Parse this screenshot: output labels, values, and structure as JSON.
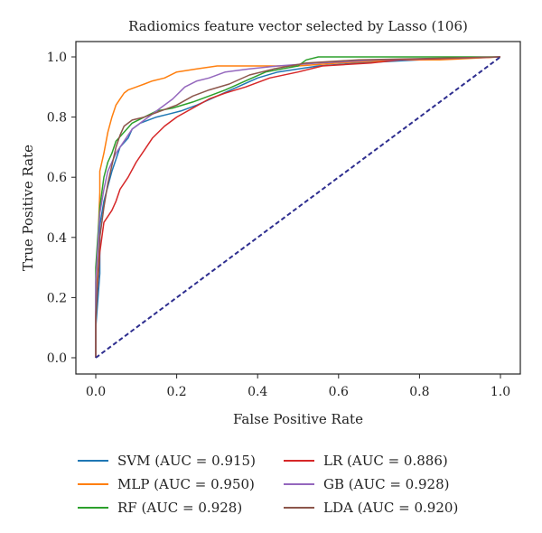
{
  "chart_data": {
    "type": "line",
    "title": "Radiomics feature vector selected by Lasso (106)",
    "xlabel": "False Positive Rate",
    "ylabel": "True Positive Rate",
    "xlim": [
      0.0,
      1.0
    ],
    "ylim": [
      0.0,
      1.0
    ],
    "x_ticks": [
      "0.0",
      "0.2",
      "0.4",
      "0.6",
      "0.8",
      "1.0"
    ],
    "y_ticks": [
      "0.0",
      "0.2",
      "0.4",
      "0.6",
      "0.8",
      "1.0"
    ],
    "grid": false,
    "legend_position": "below",
    "chance_line": {
      "style": "dashed",
      "color": "#2e2e8f",
      "points": [
        [
          0.0,
          0.0
        ],
        [
          1.0,
          1.0
        ]
      ]
    },
    "series": [
      {
        "name": "SVM (AUC = 0.915)",
        "color": "#1f77b4",
        "points": [
          [
            0,
            0
          ],
          [
            0,
            0.1
          ],
          [
            0.01,
            0.28
          ],
          [
            0.01,
            0.44
          ],
          [
            0.02,
            0.52
          ],
          [
            0.03,
            0.57
          ],
          [
            0.04,
            0.62
          ],
          [
            0.05,
            0.66
          ],
          [
            0.06,
            0.7
          ],
          [
            0.08,
            0.73
          ],
          [
            0.09,
            0.76
          ],
          [
            0.11,
            0.78
          ],
          [
            0.13,
            0.79
          ],
          [
            0.15,
            0.8
          ],
          [
            0.18,
            0.81
          ],
          [
            0.21,
            0.82
          ],
          [
            0.25,
            0.84
          ],
          [
            0.3,
            0.87
          ],
          [
            0.35,
            0.9
          ],
          [
            0.4,
            0.93
          ],
          [
            0.45,
            0.95
          ],
          [
            0.55,
            0.97
          ],
          [
            0.65,
            0.98
          ],
          [
            0.8,
            0.99
          ],
          [
            1,
            1
          ]
        ]
      },
      {
        "name": "MLP (AUC = 0.950)",
        "color": "#ff7f0e",
        "points": [
          [
            0,
            0
          ],
          [
            0,
            0.2
          ],
          [
            0.01,
            0.55
          ],
          [
            0.01,
            0.62
          ],
          [
            0.02,
            0.68
          ],
          [
            0.03,
            0.75
          ],
          [
            0.04,
            0.8
          ],
          [
            0.05,
            0.84
          ],
          [
            0.06,
            0.86
          ],
          [
            0.07,
            0.88
          ],
          [
            0.08,
            0.89
          ],
          [
            0.1,
            0.9
          ],
          [
            0.12,
            0.91
          ],
          [
            0.14,
            0.92
          ],
          [
            0.17,
            0.93
          ],
          [
            0.2,
            0.95
          ],
          [
            0.25,
            0.96
          ],
          [
            0.3,
            0.97
          ],
          [
            0.4,
            0.97
          ],
          [
            0.5,
            0.97
          ],
          [
            0.6,
            0.98
          ],
          [
            0.75,
            0.99
          ],
          [
            0.85,
            0.99
          ],
          [
            1,
            1
          ]
        ]
      },
      {
        "name": "RF (AUC = 0.928)",
        "color": "#2ca02c",
        "points": [
          [
            0,
            0
          ],
          [
            0,
            0.3
          ],
          [
            0.01,
            0.5
          ],
          [
            0.02,
            0.6
          ],
          [
            0.03,
            0.65
          ],
          [
            0.04,
            0.68
          ],
          [
            0.05,
            0.72
          ],
          [
            0.07,
            0.75
          ],
          [
            0.09,
            0.78
          ],
          [
            0.12,
            0.8
          ],
          [
            0.15,
            0.82
          ],
          [
            0.19,
            0.83
          ],
          [
            0.24,
            0.85
          ],
          [
            0.28,
            0.87
          ],
          [
            0.32,
            0.89
          ],
          [
            0.37,
            0.92
          ],
          [
            0.42,
            0.95
          ],
          [
            0.5,
            0.97
          ],
          [
            0.52,
            0.99
          ],
          [
            0.55,
            1.0
          ],
          [
            1,
            1
          ]
        ]
      },
      {
        "name": "LR (AUC = 0.886)",
        "color": "#d62728",
        "points": [
          [
            0,
            0
          ],
          [
            0,
            0.15
          ],
          [
            0.01,
            0.35
          ],
          [
            0.02,
            0.45
          ],
          [
            0.04,
            0.49
          ],
          [
            0.05,
            0.52
          ],
          [
            0.06,
            0.56
          ],
          [
            0.08,
            0.6
          ],
          [
            0.1,
            0.65
          ],
          [
            0.12,
            0.69
          ],
          [
            0.14,
            0.73
          ],
          [
            0.17,
            0.77
          ],
          [
            0.2,
            0.8
          ],
          [
            0.24,
            0.83
          ],
          [
            0.28,
            0.86
          ],
          [
            0.32,
            0.88
          ],
          [
            0.37,
            0.9
          ],
          [
            0.43,
            0.93
          ],
          [
            0.5,
            0.95
          ],
          [
            0.56,
            0.97
          ],
          [
            0.68,
            0.98
          ],
          [
            0.75,
            0.99
          ],
          [
            1,
            1
          ]
        ]
      },
      {
        "name": "GB (AUC = 0.928)",
        "color": "#9467bd",
        "points": [
          [
            0,
            0
          ],
          [
            0,
            0.25
          ],
          [
            0.01,
            0.48
          ],
          [
            0.02,
            0.56
          ],
          [
            0.03,
            0.62
          ],
          [
            0.05,
            0.68
          ],
          [
            0.07,
            0.72
          ],
          [
            0.09,
            0.76
          ],
          [
            0.12,
            0.79
          ],
          [
            0.15,
            0.82
          ],
          [
            0.19,
            0.86
          ],
          [
            0.22,
            0.9
          ],
          [
            0.25,
            0.92
          ],
          [
            0.28,
            0.93
          ],
          [
            0.32,
            0.95
          ],
          [
            0.38,
            0.96
          ],
          [
            0.45,
            0.97
          ],
          [
            0.55,
            0.98
          ],
          [
            0.7,
            0.99
          ],
          [
            1,
            1
          ]
        ]
      },
      {
        "name": "LDA (AUC = 0.920)",
        "color": "#8c564b",
        "points": [
          [
            0,
            0
          ],
          [
            0,
            0.12
          ],
          [
            0.01,
            0.4
          ],
          [
            0.02,
            0.5
          ],
          [
            0.03,
            0.58
          ],
          [
            0.04,
            0.64
          ],
          [
            0.05,
            0.7
          ],
          [
            0.06,
            0.74
          ],
          [
            0.07,
            0.77
          ],
          [
            0.09,
            0.79
          ],
          [
            0.12,
            0.8
          ],
          [
            0.16,
            0.82
          ],
          [
            0.2,
            0.84
          ],
          [
            0.24,
            0.87
          ],
          [
            0.28,
            0.89
          ],
          [
            0.33,
            0.91
          ],
          [
            0.38,
            0.94
          ],
          [
            0.44,
            0.96
          ],
          [
            0.52,
            0.98
          ],
          [
            0.65,
            0.99
          ],
          [
            1,
            1
          ]
        ]
      }
    ]
  }
}
